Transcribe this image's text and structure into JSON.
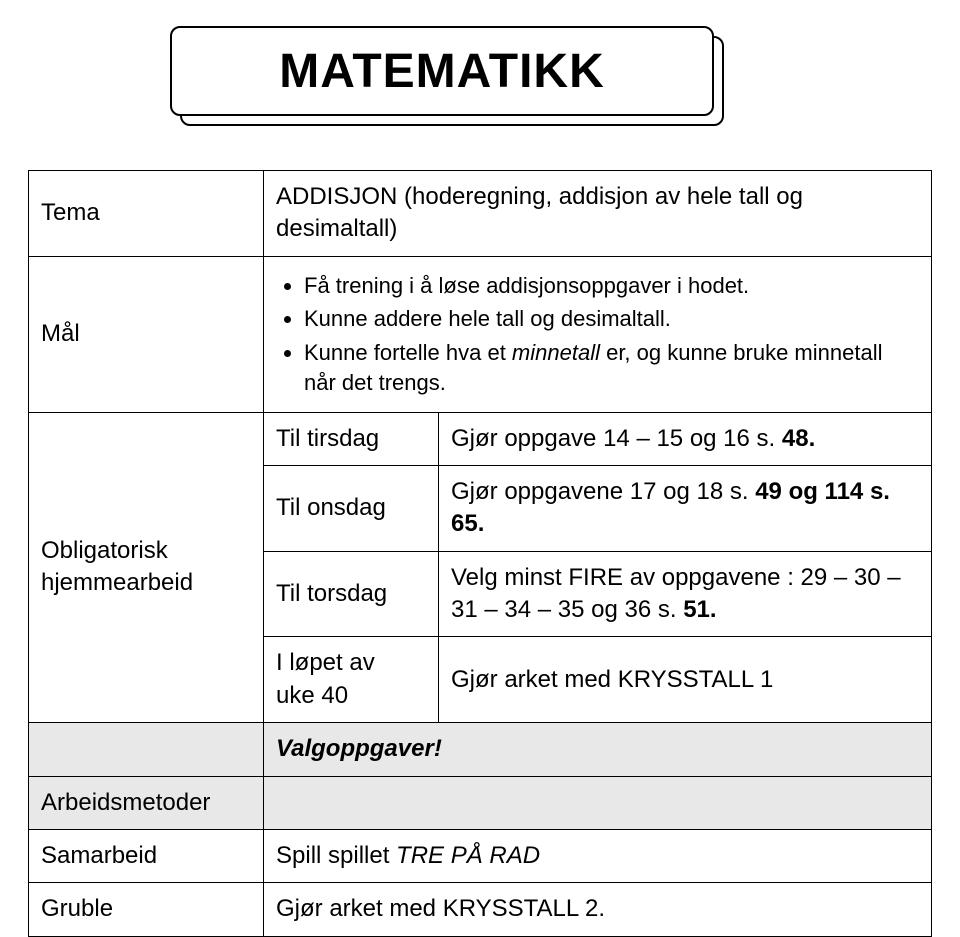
{
  "title": "MATEMATIKK",
  "labels": {
    "tema": "Tema",
    "maal": "Mål",
    "oblig1": "Obligatorisk",
    "oblig2": "hjemmearbeid",
    "metoder": "Arbeidsmetoder",
    "samarbeid": "Samarbeid",
    "gruble": "Gruble"
  },
  "tema_text": "ADDISJON (hoderegning, addisjon av hele tall og desimaltall)",
  "maal_items": [
    "Få trening i å løse addisjonsoppgaver i hodet.",
    "Kunne addere hele tall og desimaltall."
  ],
  "maal_item3_pre": "Kunne fortelle hva et ",
  "maal_item3_em": "minnetall",
  "maal_item3_post": " er, og kunne bruke minnetall når det trengs.",
  "rows": {
    "tirsdag_label": "Til tirsdag",
    "tirsdag_text_a": "Gjør oppgave 14 – 15 og 16 s. ",
    "tirsdag_text_b": "48.",
    "onsdag_label": "Til onsdag",
    "onsdag_text_a": "Gjør oppgavene 17 og 18 s. ",
    "onsdag_text_b": "49 og 114 s. 65.",
    "torsdag_label": "Til torsdag",
    "torsdag_text_a": "Velg minst FIRE av oppgavene : 29 – 30 – 31 – 34 – 35 og 36 s. ",
    "torsdag_text_b": "51.",
    "uke_label1": "I løpet av",
    "uke_label2": "uke 40",
    "uke_text": "Gjør arket med KRYSSTALL 1"
  },
  "valgoppgaver": "Valgoppgaver!",
  "samarbeid_pre": "Spill spillet ",
  "samarbeid_em": "TRE PÅ RAD",
  "gruble_text": "Gjør arket med KRYSSTALL 2."
}
